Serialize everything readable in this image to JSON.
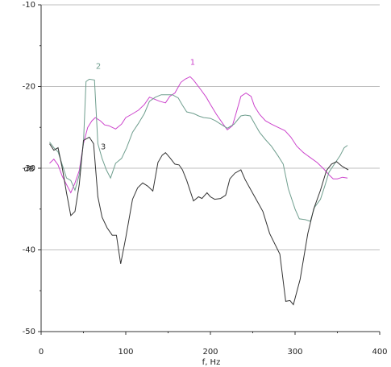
{
  "chart_data": {
    "type": "line",
    "xlabel": "f, Hz",
    "ylabel": "dB",
    "xlim": [
      0,
      400
    ],
    "xticks": [
      0,
      100,
      200,
      300,
      400
    ],
    "ylim": [
      -50,
      -10
    ],
    "yticks": [
      -50,
      -40,
      -30,
      -20,
      -10
    ],
    "grid": true,
    "series": [
      {
        "name": "1",
        "color": "#cc44cc",
        "x": [
          10,
          15,
          20,
          25,
          30,
          35,
          40,
          45,
          50,
          55,
          60,
          64,
          70,
          75,
          80,
          88,
          95,
          100,
          107,
          115,
          122,
          128,
          135,
          140,
          147,
          152,
          158,
          165,
          170,
          176,
          180,
          188,
          195,
          200,
          207,
          215,
          220,
          226,
          230,
          236,
          242,
          248,
          252,
          258,
          265,
          272,
          280,
          288,
          295,
          302,
          310,
          318,
          326,
          334,
          340,
          345,
          350,
          356,
          362
        ],
        "values": [
          -29.4,
          -28.9,
          -29.6,
          -31,
          -32,
          -33,
          -31.8,
          -30.3,
          -27,
          -25,
          -24.2,
          -23.8,
          -24.2,
          -24.7,
          -24.8,
          -25.2,
          -24.6,
          -23.8,
          -23.4,
          -22.9,
          -22.2,
          -21.3,
          -21.6,
          -21.8,
          -22,
          -21.2,
          -20.8,
          -19.5,
          -19.1,
          -18.8,
          -19.2,
          -20.3,
          -21.3,
          -22.2,
          -23.4,
          -24.6,
          -25.3,
          -24.8,
          -23.4,
          -21.2,
          -20.8,
          -21.2,
          -22.4,
          -23.4,
          -24.2,
          -24.6,
          -25,
          -25.4,
          -26.2,
          -27.3,
          -28.1,
          -28.7,
          -29.3,
          -30.1,
          -30.8,
          -31.3,
          -31.3,
          -31.1,
          -31.2
        ]
      },
      {
        "name": "2",
        "color": "#6f9e8e",
        "x": [
          10,
          15,
          20,
          25,
          30,
          35,
          40,
          45,
          50,
          53,
          57,
          63,
          67,
          72,
          77,
          82,
          88,
          95,
          101,
          108,
          115,
          122,
          128,
          135,
          142,
          148,
          155,
          162,
          167,
          172,
          180,
          186,
          192,
          200,
          206,
          212,
          220,
          228,
          236,
          241,
          247,
          252,
          258,
          265,
          272,
          280,
          286,
          292,
          300,
          305,
          312,
          318,
          323,
          330,
          335,
          340,
          347,
          353,
          358,
          362
        ],
        "values": [
          -26.8,
          -27.5,
          -28,
          -29.6,
          -31.2,
          -31.5,
          -32.7,
          -30.8,
          -27,
          -19.4,
          -19.1,
          -19.2,
          -27,
          -28.8,
          -30.2,
          -31.2,
          -29.4,
          -28.8,
          -27.5,
          -25.6,
          -24.5,
          -23.3,
          -21.8,
          -21.3,
          -21,
          -21,
          -21,
          -21.4,
          -22.3,
          -23.1,
          -23.3,
          -23.6,
          -23.8,
          -23.9,
          -24.2,
          -24.6,
          -25.1,
          -24.6,
          -23.6,
          -23.5,
          -23.6,
          -24.5,
          -25.6,
          -26.5,
          -27.3,
          -28.5,
          -29.5,
          -32.5,
          -35,
          -36.2,
          -36.3,
          -36.5,
          -34.8,
          -33.8,
          -32.2,
          -30.5,
          -29.4,
          -28.5,
          -27.5,
          -27.2
        ]
      },
      {
        "name": "3",
        "color": "#333333",
        "x": [
          10,
          15,
          20,
          25,
          30,
          35,
          40,
          45,
          50,
          57,
          62,
          67,
          72,
          78,
          84,
          89,
          94,
          100,
          108,
          114,
          120,
          126,
          132,
          138,
          143,
          147,
          152,
          158,
          163,
          167,
          172,
          180,
          186,
          190,
          196,
          200,
          205,
          212,
          218,
          223,
          229,
          236,
          241,
          248,
          255,
          262,
          270,
          282,
          289,
          294,
          298,
          306,
          315,
          322,
          330,
          337,
          343,
          349,
          356,
          363
        ],
        "values": [
          -27,
          -27.8,
          -27.5,
          -30,
          -33,
          -35.8,
          -35.3,
          -32,
          -26.6,
          -26.2,
          -27,
          -33.5,
          -36,
          -37.3,
          -38.2,
          -38.2,
          -41.7,
          -38.5,
          -33.8,
          -32.4,
          -31.8,
          -32.2,
          -32.8,
          -29.3,
          -28.4,
          -28.1,
          -28.7,
          -29.5,
          -29.6,
          -30.2,
          -31.5,
          -34,
          -33.5,
          -33.7,
          -33,
          -33.5,
          -33.8,
          -33.7,
          -33.3,
          -31.3,
          -30.6,
          -30.2,
          -31.4,
          -32.7,
          -34,
          -35.3,
          -38,
          -40.5,
          -46.3,
          -46.2,
          -46.7,
          -43.6,
          -38,
          -35,
          -32.7,
          -30.3,
          -29.5,
          -29.2,
          -29.8,
          -30.2
        ]
      }
    ]
  }
}
